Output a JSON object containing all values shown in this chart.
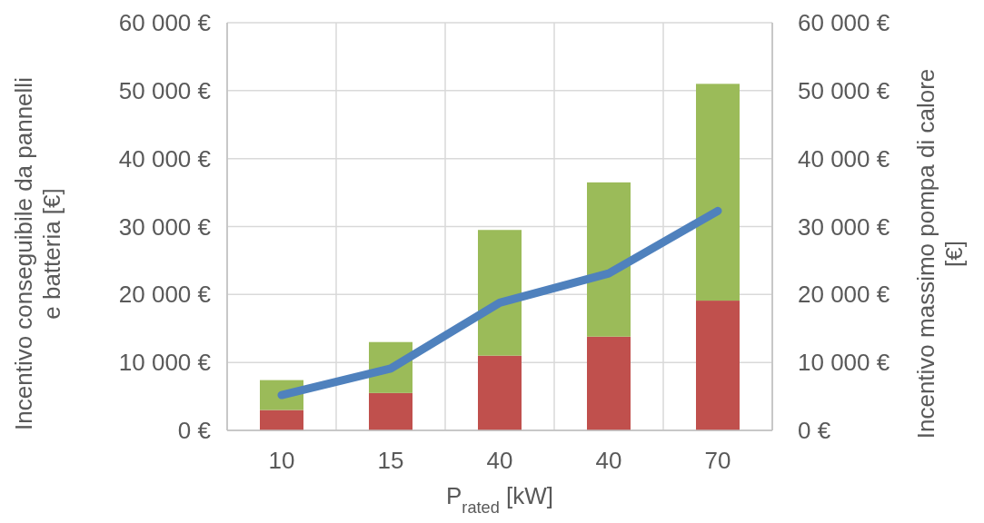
{
  "chart_data": {
    "type": "bar",
    "stacked": true,
    "xlabel": "P$_{rated}$ [kW]",
    "ylabel": "Incentivo conseguibile da pannelli e batteria [€]",
    "y2label": "Incentivo massimo pompa di calore [€]",
    "categories": [
      "10",
      "15",
      "40",
      "40",
      "70"
    ],
    "series": [
      {
        "color": "#c0504d",
        "values": [
          3000,
          5500,
          11000,
          13800,
          19100
        ]
      },
      {
        "color": "#9bbb59",
        "values": [
          4400,
          7500,
          18500,
          22700,
          31900
        ]
      },
      {
        "type": "line",
        "axis": "y2",
        "color": "#4f81bd",
        "values": [
          5200,
          9100,
          18800,
          23100,
          32300
        ]
      }
    ],
    "ylim": [
      0,
      60000
    ],
    "yticks": [
      {
        "value": 0,
        "label": "0 €"
      },
      {
        "value": 10000,
        "label": "10 000 €"
      },
      {
        "value": 20000,
        "label": "20 000 €"
      },
      {
        "value": 30000,
        "label": "30 000 €"
      },
      {
        "value": 40000,
        "label": "40 000 €"
      },
      {
        "value": 50000,
        "label": "50 000 €"
      },
      {
        "value": 60000,
        "label": "60 000 €"
      }
    ],
    "y2lim": [
      0,
      60000
    ],
    "y2ticks": [
      {
        "value": 0,
        "label": "0 €"
      },
      {
        "value": 10000,
        "label": "10 000 €"
      },
      {
        "value": 20000,
        "label": "20 000 €"
      },
      {
        "value": 30000,
        "label": "30 000 €"
      },
      {
        "value": 40000,
        "label": "40 000 €"
      },
      {
        "value": 50000,
        "label": "50 000 €"
      },
      {
        "value": 60000,
        "label": "60 000 €"
      }
    ],
    "grid": true,
    "marker": "none",
    "line_style": "solid"
  }
}
